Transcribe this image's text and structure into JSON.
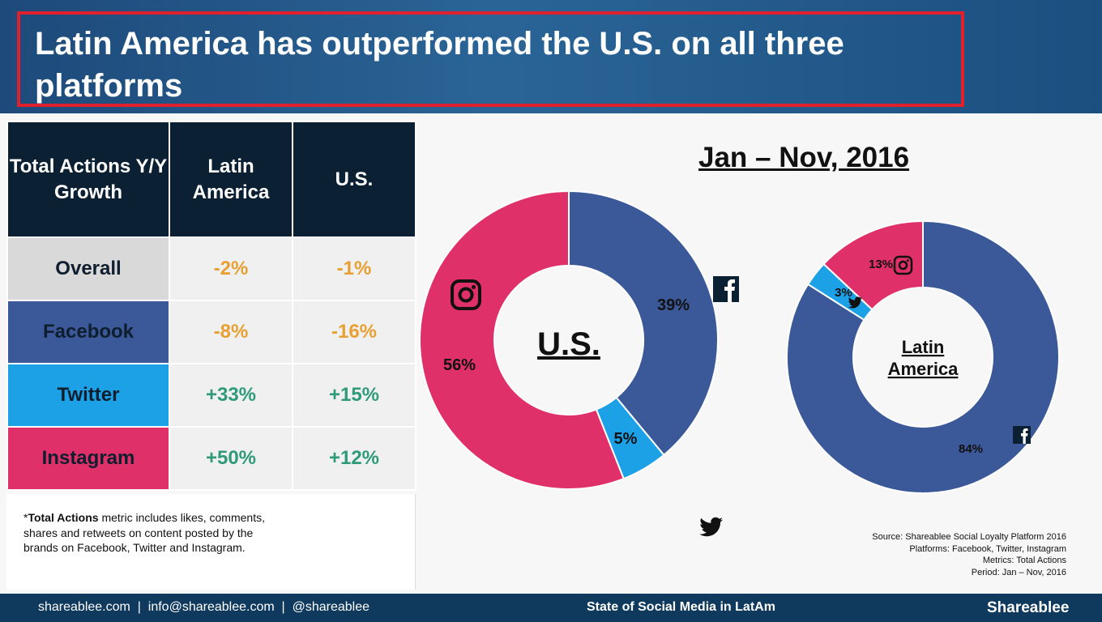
{
  "title": "Latin America has outperformed the U.S. on all three platforms",
  "table": {
    "headers": [
      "Total Actions Y/Y Growth",
      "Latin America",
      "U.S."
    ],
    "rows": [
      {
        "label": "Overall",
        "latam": "-2%",
        "us": "-1%"
      },
      {
        "label": "Facebook",
        "latam": "-8%",
        "us": "-16%"
      },
      {
        "label": "Twitter",
        "latam": "+33%",
        "us": "+15%"
      },
      {
        "label": "Instagram",
        "latam": "+50%",
        "us": "+12%"
      }
    ]
  },
  "note": {
    "prefix": "*",
    "bold": "Total Actions",
    "rest": " metric includes likes, comments, shares and retweets on content posted by the brands on Facebook, Twitter and Instagram."
  },
  "period": "Jan – Nov, 2016",
  "chart_data": [
    {
      "type": "pie",
      "center_label": "U.S.",
      "categories": [
        "Facebook",
        "Twitter",
        "Instagram"
      ],
      "values": [
        39,
        5,
        56
      ],
      "labels": [
        "39%",
        "5%",
        "56%"
      ],
      "colors": [
        "#3b5998",
        "#1da1e6",
        "#e0306a"
      ]
    },
    {
      "type": "pie",
      "center_label": "Latin America",
      "categories": [
        "Facebook",
        "Twitter",
        "Instagram"
      ],
      "values": [
        84,
        3,
        13
      ],
      "labels": [
        "84%",
        "3%",
        "13%"
      ],
      "colors": [
        "#3b5998",
        "#1da1e6",
        "#e0306a"
      ]
    }
  ],
  "source": [
    "Source: Shareablee Social Loyalty Platform 2016",
    "Platforms: Facebook, Twitter, Instagram",
    "Metrics: Total Actions",
    "Period: Jan – Nov, 2016"
  ],
  "footer": {
    "links": "shareablee.com  |  info@shareablee.com  |  @shareablee",
    "center": "State of Social Media in LatAm",
    "brand": "Shareablee"
  }
}
